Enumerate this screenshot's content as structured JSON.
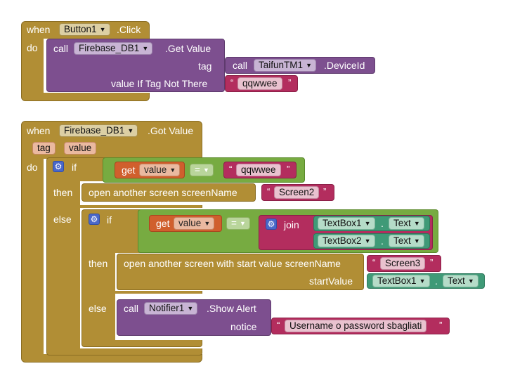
{
  "event1": {
    "when": "when",
    "component": "Button1",
    "event": ".Click",
    "do": "do",
    "call": "call",
    "db": "Firebase_DB1",
    "method": ".Get Value",
    "tag_label": "tag",
    "device_call": "call",
    "device_component": "TaifunTM1",
    "device_prop": ".DeviceId",
    "value_if_label": "value If Tag Not There",
    "string_value": "qqwwee"
  },
  "event2": {
    "when": "when",
    "component": "Firebase_DB1",
    "event": ".Got Value",
    "param_tag": "tag",
    "param_value": "value",
    "do": "do",
    "if_label": "if",
    "get_label": "get",
    "get_var": "value",
    "eq_op": "=",
    "compare_string": "qqwwee",
    "then_label": "then",
    "open_screen": "open another screen  screenName",
    "screen_name": "Screen2",
    "else_label": "else",
    "inner_if": "if",
    "inner_get": "get",
    "inner_get_var": "value",
    "inner_eq": "=",
    "join_label": "join",
    "tb1_component": "TextBox1",
    "tb1_sep": ".",
    "tb1_prop": "Text",
    "tb2_component": "TextBox2",
    "tb2_sep": ".",
    "tb2_prop": "Text",
    "inner_then": "then",
    "open_start": "open another screen with start value  screenName",
    "screen3": "Screen3",
    "start_value_label": "startValue",
    "sv_component": "TextBox1",
    "sv_sep": ".",
    "sv_prop": "Text",
    "inner_else": "else",
    "notifier_call": "call",
    "notifier_component": "Notifier1",
    "notifier_method": ".Show Alert",
    "notice_label": "notice",
    "alert_text": "Username o password sbagliati"
  }
}
